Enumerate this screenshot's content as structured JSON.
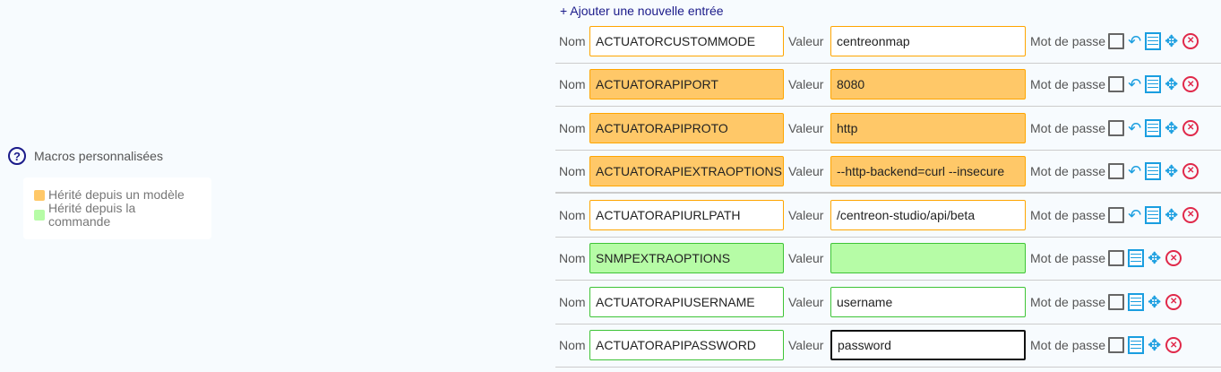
{
  "add_entry": "+ Ajouter une nouvelle entrée",
  "section_title": "Macros personnalisées",
  "legend": [
    {
      "label": "Hérité depuis un modèle",
      "color": "#ffc868"
    },
    {
      "label": "Hérité depuis la commande",
      "color": "#b6fca6"
    }
  ],
  "labels": {
    "name": "Nom",
    "value": "Valeur",
    "password": "Mot de passe"
  },
  "colors": {
    "template_border": "#ffa500",
    "template_fill": "#ffc868",
    "command_border": "#3ec437",
    "command_fill": "#b6fca6"
  },
  "macros": [
    {
      "name": "ACTUATORCUSTOMMODE",
      "value": "centreonmap",
      "style": "template-border",
      "undo": true
    },
    {
      "name": "ACTUATORAPIPORT",
      "value": "8080",
      "style": "template",
      "undo": true
    },
    {
      "name": "ACTUATORAPIPROTO",
      "value": "http",
      "style": "template",
      "undo": true
    },
    {
      "name": "ACTUATORAPIEXTRAOPTIONS",
      "value": "--http-backend=curl --insecure",
      "style": "template",
      "undo": true
    },
    {
      "name": "ACTUATORAPIURLPATH",
      "value": "/centreon-studio/api/beta",
      "style": "template-border",
      "undo": true
    },
    {
      "name": "SNMPEXTRAOPTIONS",
      "value": "",
      "style": "command",
      "undo": false
    },
    {
      "name": "ACTUATORAPIUSERNAME",
      "value": "username",
      "style": "command-border",
      "undo": false
    },
    {
      "name": "ACTUATORAPIPASSWORD",
      "value": "password",
      "style": "command-border",
      "undo": false,
      "focused": true
    }
  ]
}
